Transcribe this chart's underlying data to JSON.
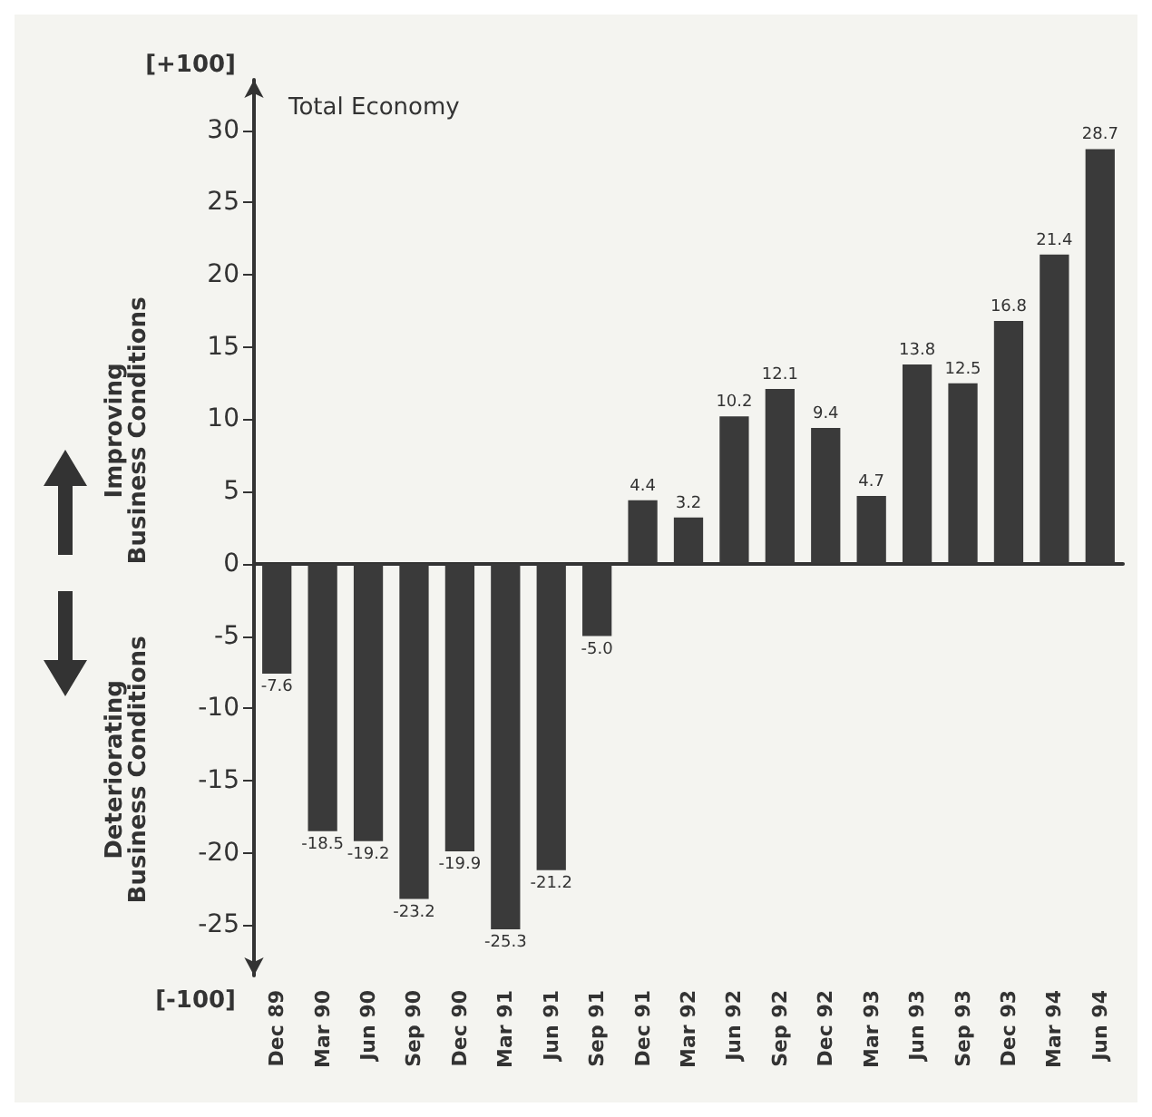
{
  "chart_data": {
    "type": "bar",
    "title": "Total Economy",
    "categories": [
      "Dec 89",
      "Mar 90",
      "Jun 90",
      "Sep 90",
      "Dec 90",
      "Mar 91",
      "Jun 91",
      "Sep 91",
      "Dec 91",
      "Mar 92",
      "Jun 92",
      "Sep 92",
      "Dec 92",
      "Mar 93",
      "Jun 93",
      "Sep 93",
      "Dec 93",
      "Mar 94",
      "Jun 94"
    ],
    "values": [
      -7.6,
      -18.5,
      -19.2,
      -23.2,
      -19.9,
      -25.3,
      -21.2,
      -5.0,
      4.4,
      3.2,
      10.2,
      12.1,
      9.4,
      4.7,
      13.8,
      12.5,
      16.8,
      21.4,
      28.7
    ],
    "value_labels": [
      "-7.6",
      "-18.5",
      "-19.2",
      "-23.2",
      "-19.9",
      "-25.3",
      "-21.2",
      "-5.0",
      "4.4",
      "3.2",
      "10.2",
      "12.1",
      "9.4",
      "4.7",
      "13.8",
      "12.5",
      "16.8",
      "21.4",
      "28.7"
    ],
    "color": "#3a3a3a",
    "ylim": [
      -28.5,
      33.5
    ],
    "yticks": [
      -25,
      -20,
      -15,
      -10,
      -5,
      0,
      5,
      10,
      15,
      20,
      25,
      30
    ],
    "annotations": [
      "[+100]",
      "[-100]",
      "Improving\nBusiness Conditions",
      "Deteriorating\nBusiness Conditions"
    ]
  }
}
